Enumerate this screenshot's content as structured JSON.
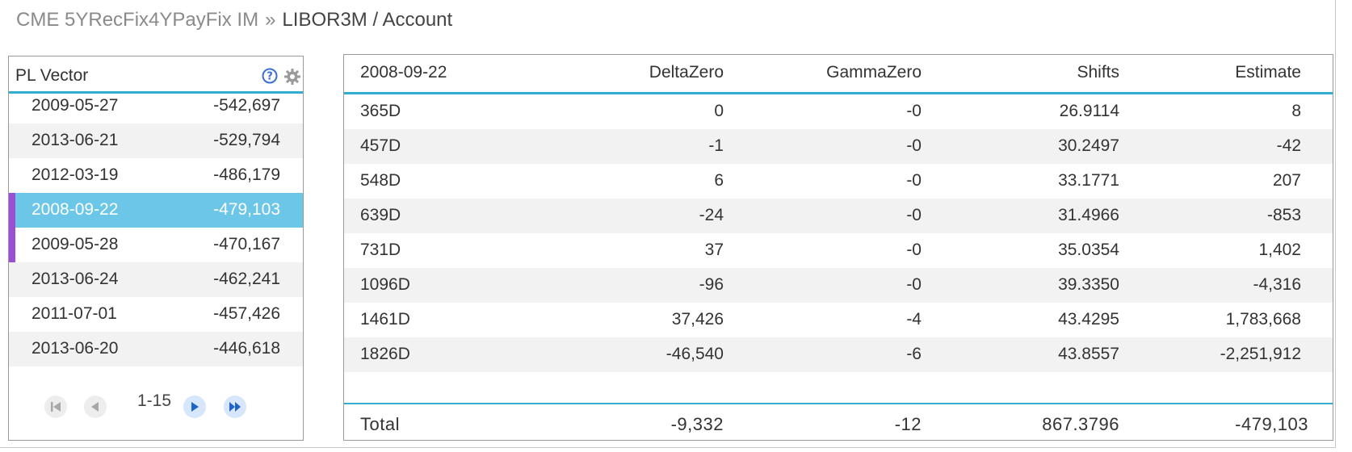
{
  "breadcrumb": {
    "parent": "CME 5YRecFix4YPayFix IM",
    "separator": "»",
    "current": "LIBOR3M / Account"
  },
  "pl_vector": {
    "title": "PL Vector",
    "help_icon": "help-icon",
    "settings_icon": "gear-icon",
    "rows": [
      {
        "date": "2009-05-27",
        "value": "-542,697"
      },
      {
        "date": "2013-06-21",
        "value": "-529,794"
      },
      {
        "date": "2012-03-19",
        "value": "-486,179"
      },
      {
        "date": "2008-09-22",
        "value": "-479,103",
        "selected": true
      },
      {
        "date": "2009-05-28",
        "value": "-470,167",
        "marked": true
      },
      {
        "date": "2013-06-24",
        "value": "-462,241"
      },
      {
        "date": "2011-07-01",
        "value": "-457,426"
      },
      {
        "date": "2013-06-20",
        "value": "-446,618"
      }
    ],
    "pager": {
      "range": "1-15"
    }
  },
  "detail_table": {
    "headers": [
      "2008-09-22",
      "DeltaZero",
      "GammaZero",
      "Shifts",
      "Estimate"
    ],
    "rows": [
      [
        "365D",
        "0",
        "-0",
        "26.9114",
        "8"
      ],
      [
        "457D",
        "-1",
        "-0",
        "30.2497",
        "-42"
      ],
      [
        "548D",
        "6",
        "-0",
        "33.1771",
        "207"
      ],
      [
        "639D",
        "-24",
        "-0",
        "31.4966",
        "-853"
      ],
      [
        "731D",
        "37",
        "-0",
        "35.0354",
        "1,402"
      ],
      [
        "1096D",
        "-96",
        "-0",
        "39.3350",
        "-4,316"
      ],
      [
        "1461D",
        "37,426",
        "-4",
        "43.4295",
        "1,783,668"
      ],
      [
        "1826D",
        "-46,540",
        "-6",
        "43.8557",
        "-2,251,912"
      ]
    ],
    "total": [
      "Total",
      "-9,332",
      "-12",
      "867.3796",
      "-479,103"
    ]
  },
  "colors": {
    "accent": "#33aed1",
    "selected_row": "#6cc6e8",
    "marker": "#9b4dd6",
    "alt_row": "#f2f2f2"
  }
}
